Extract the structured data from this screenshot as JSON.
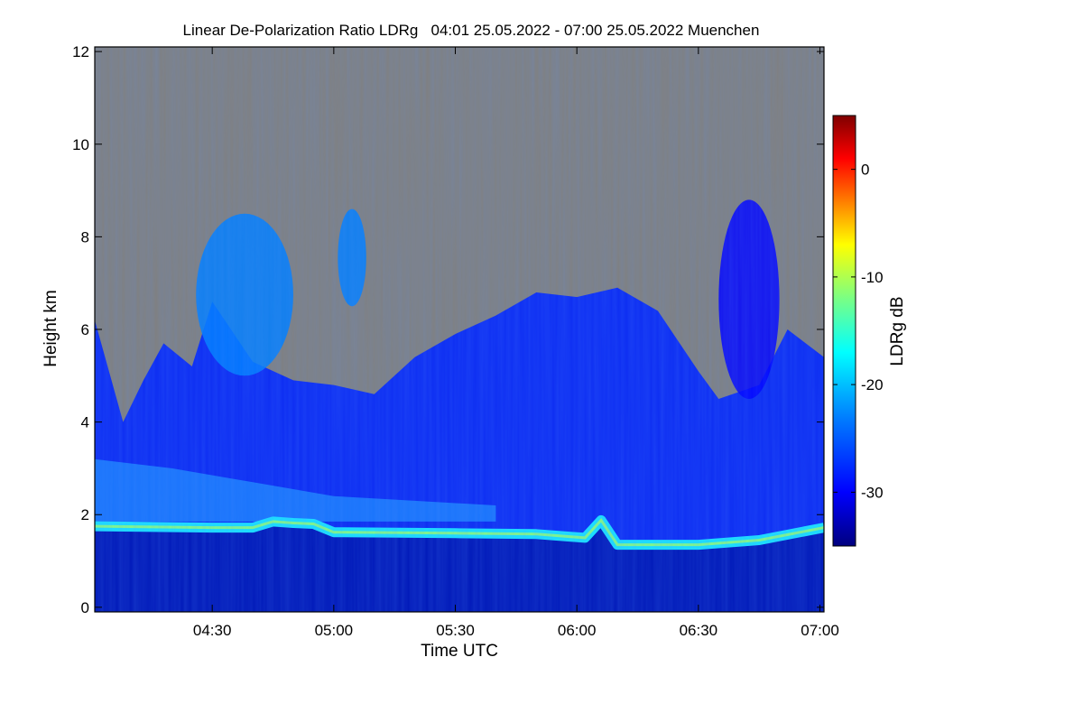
{
  "chart_data": {
    "type": "heatmap",
    "title": "Linear De-Polarization Ratio LDRg   04:01 25.05.2022 - 07:00 25.05.2022 Muenchen",
    "xlabel": "Time UTC",
    "ylabel": "Height km",
    "x_range": [
      "04:01",
      "07:01"
    ],
    "y_range": [
      -0.1,
      12.1
    ],
    "x_ticks": [
      "04:30",
      "05:00",
      "05:30",
      "06:00",
      "06:30",
      "07:00"
    ],
    "y_ticks": [
      0,
      2,
      4,
      6,
      8,
      10,
      12
    ],
    "no_signal_color": "#808080",
    "colorbar": {
      "label": "LDRg dB",
      "range": [
        -35,
        5
      ],
      "ticks": [
        0,
        -10,
        -20,
        -30
      ],
      "colormap": [
        "#00007f",
        "#0000ff",
        "#007fff",
        "#00ffff",
        "#7fff7f",
        "#ffff00",
        "#ff7f00",
        "#ff0000",
        "#7f0000"
      ]
    },
    "features": {
      "signal_top_km": [
        [
          "04:01",
          6.2
        ],
        [
          "04:08",
          4.0
        ],
        [
          "04:13",
          4.9
        ],
        [
          "04:18",
          5.7
        ],
        [
          "04:25",
          5.2
        ],
        [
          "04:30",
          6.6
        ],
        [
          "04:40",
          5.3
        ],
        [
          "04:50",
          4.9
        ],
        [
          "05:00",
          4.8
        ],
        [
          "05:10",
          4.6
        ],
        [
          "05:20",
          5.4
        ],
        [
          "05:30",
          5.9
        ],
        [
          "05:40",
          6.3
        ],
        [
          "05:50",
          6.8
        ],
        [
          "06:00",
          6.7
        ],
        [
          "06:10",
          6.9
        ],
        [
          "06:20",
          6.4
        ],
        [
          "06:30",
          5.1
        ],
        [
          "06:35",
          4.5
        ],
        [
          "06:45",
          4.8
        ],
        [
          "06:52",
          6.0
        ],
        [
          "07:01",
          5.4
        ]
      ],
      "boundary_layer_km": [
        [
          "04:01",
          1.75
        ],
        [
          "04:30",
          1.72
        ],
        [
          "04:40",
          1.72
        ],
        [
          "04:45",
          1.85
        ],
        [
          "04:50",
          1.82
        ],
        [
          "04:55",
          1.8
        ],
        [
          "05:00",
          1.62
        ],
        [
          "05:30",
          1.6
        ],
        [
          "05:50",
          1.58
        ],
        [
          "06:02",
          1.5
        ],
        [
          "06:06",
          1.88
        ],
        [
          "06:10",
          1.35
        ],
        [
          "06:30",
          1.35
        ],
        [
          "06:45",
          1.45
        ],
        [
          "07:01",
          1.72
        ]
      ],
      "aerosol_layer_top_km": [
        [
          "04:01",
          3.2
        ],
        [
          "04:20",
          3.0
        ],
        [
          "04:40",
          2.7
        ],
        [
          "05:00",
          2.4
        ],
        [
          "05:20",
          2.3
        ],
        [
          "05:40",
          2.2
        ]
      ],
      "cirrus_patches": [
        {
          "x": [
            "04:26",
            "04:50"
          ],
          "y": [
            5.0,
            8.5
          ],
          "value_db": -25
        },
        {
          "x": [
            "05:01",
            "05:08"
          ],
          "y": [
            6.5,
            8.6
          ],
          "value_db": -27
        },
        {
          "x": [
            "06:35",
            "06:50"
          ],
          "y": [
            4.5,
            8.8
          ],
          "value_db": -28
        }
      ]
    }
  }
}
